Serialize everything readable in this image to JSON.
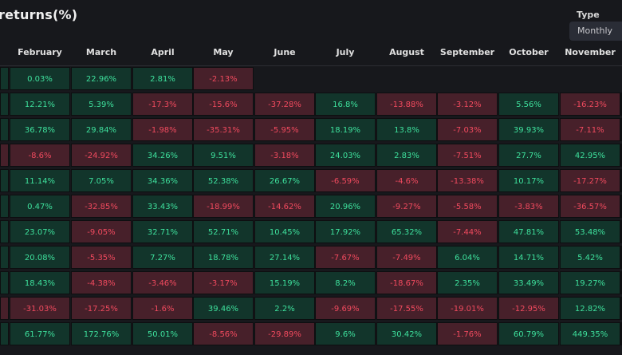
{
  "title": "returns(%)",
  "type_filter": {
    "label": "Type",
    "value": "Monthly"
  },
  "months": [
    "February",
    "March",
    "April",
    "May",
    "June",
    "July",
    "August",
    "September",
    "October",
    "November"
  ],
  "rows": [
    [
      "0.03%",
      "22.96%",
      "2.81%",
      "-2.13%",
      "",
      "",
      "",
      "",
      "",
      ""
    ],
    [
      "12.21%",
      "5.39%",
      "-17.3%",
      "-15.6%",
      "-37.28%",
      "16.8%",
      "-13.88%",
      "-3.12%",
      "5.56%",
      "-16.23%"
    ],
    [
      "36.78%",
      "29.84%",
      "-1.98%",
      "-35.31%",
      "-5.95%",
      "18.19%",
      "13.8%",
      "-7.03%",
      "39.93%",
      "-7.11%"
    ],
    [
      "-8.6%",
      "-24.92%",
      "34.26%",
      "9.51%",
      "-3.18%",
      "24.03%",
      "2.83%",
      "-7.51%",
      "27.7%",
      "42.95%"
    ],
    [
      "11.14%",
      "7.05%",
      "34.36%",
      "52.38%",
      "26.67%",
      "-6.59%",
      "-4.6%",
      "-13.38%",
      "10.17%",
      "-17.27%"
    ],
    [
      "0.47%",
      "-32.85%",
      "33.43%",
      "-18.99%",
      "-14.62%",
      "20.96%",
      "-9.27%",
      "-5.58%",
      "-3.83%",
      "-36.57%"
    ],
    [
      "23.07%",
      "-9.05%",
      "32.71%",
      "52.71%",
      "10.45%",
      "17.92%",
      "65.32%",
      "-7.44%",
      "47.81%",
      "53.48%"
    ],
    [
      "20.08%",
      "-5.35%",
      "7.27%",
      "18.78%",
      "27.14%",
      "-7.67%",
      "-7.49%",
      "6.04%",
      "14.71%",
      "5.42%"
    ],
    [
      "18.43%",
      "-4.38%",
      "-3.46%",
      "-3.17%",
      "15.19%",
      "8.2%",
      "-18.67%",
      "2.35%",
      "33.49%",
      "19.27%"
    ],
    [
      "-31.03%",
      "-17.25%",
      "-1.6%",
      "39.46%",
      "2.2%",
      "-9.69%",
      "-17.55%",
      "-19.01%",
      "-12.95%",
      "12.82%"
    ],
    [
      "61.77%",
      "172.76%",
      "50.01%",
      "-8.56%",
      "-29.89%",
      "9.6%",
      "30.42%",
      "-1.76%",
      "60.79%",
      "449.35%"
    ]
  ],
  "colors": {
    "positive_bg": "#12352b",
    "positive_text": "#3ee09c",
    "negative_bg": "#47202a",
    "negative_text": "#f04a5e"
  }
}
